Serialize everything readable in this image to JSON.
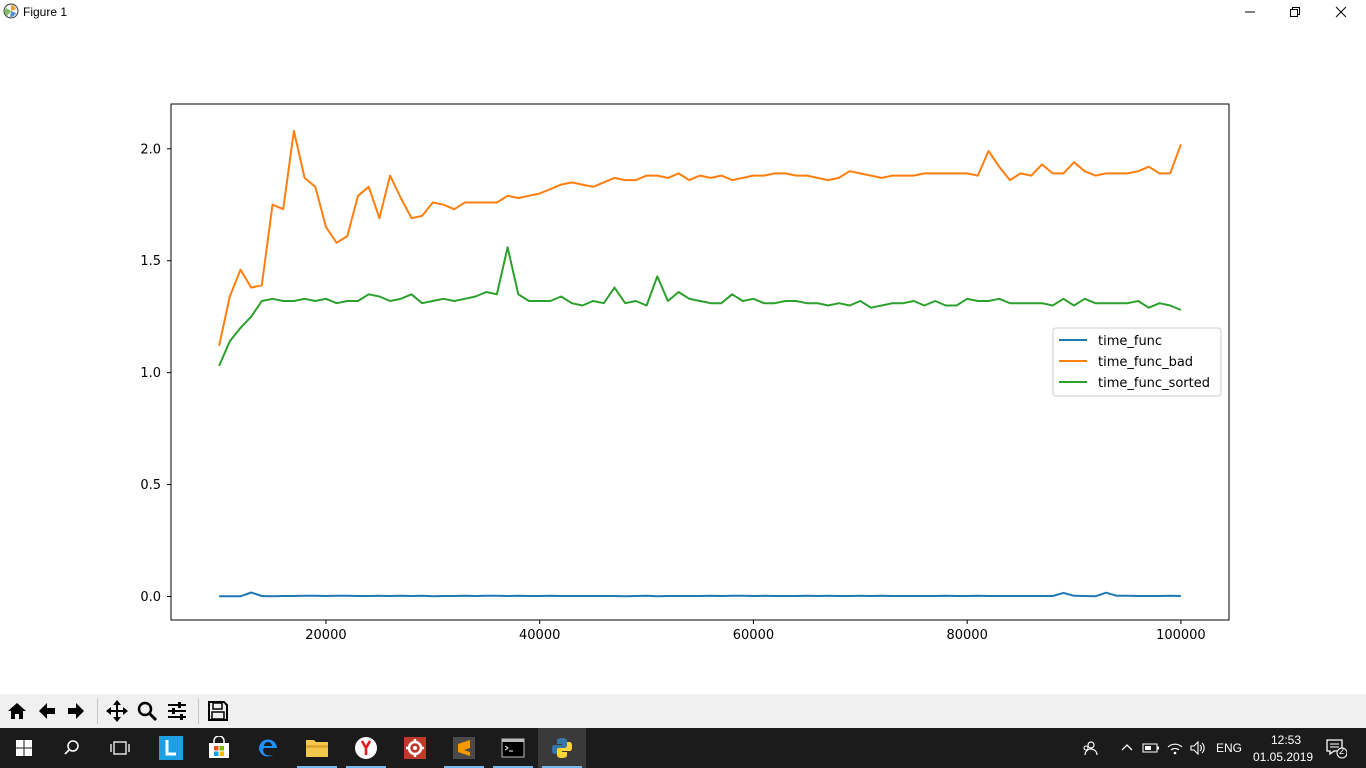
{
  "window": {
    "title": "Figure 1",
    "controls": [
      "minimize",
      "restore",
      "close"
    ]
  },
  "toolbar": {
    "buttons": [
      "home-icon",
      "back-arrow-icon",
      "forward-arrow-icon",
      "pan-icon",
      "zoom-icon",
      "configure-subplots-icon",
      "save-icon"
    ]
  },
  "taskbar": {
    "apps": [
      "start-icon",
      "search-icon",
      "task-view-icon",
      "L-app-icon",
      "store-icon",
      "edge-icon",
      "file-explorer-icon",
      "yandex-icon",
      "gear-app-icon",
      "sublime-text-icon",
      "terminal-icon",
      "python-icon"
    ],
    "tray": {
      "language": "ENG",
      "time": "12:53",
      "date": "01.05.2019",
      "notification_count": "2"
    }
  },
  "chart_data": {
    "type": "line",
    "title": "",
    "xlabel": "",
    "ylabel": "",
    "xlim": [
      5500,
      104500
    ],
    "ylim": [
      -0.105,
      2.2
    ],
    "xticks": [
      20000,
      40000,
      60000,
      80000,
      100000
    ],
    "yticks": [
      0.0,
      0.5,
      1.0,
      1.5,
      2.0
    ],
    "xtick_labels": [
      "20000",
      "40000",
      "60000",
      "80000",
      "100000"
    ],
    "ytick_labels": [
      "0.0",
      "0.5",
      "1.0",
      "1.5",
      "2.0"
    ],
    "grid": false,
    "legend_position": "center-right",
    "x": [
      10000,
      11000,
      12000,
      13000,
      14000,
      15000,
      16000,
      17000,
      18000,
      19000,
      20000,
      21000,
      22000,
      23000,
      24000,
      25000,
      26000,
      27000,
      28000,
      29000,
      30000,
      31000,
      32000,
      33000,
      34000,
      35000,
      36000,
      37000,
      38000,
      39000,
      40000,
      41000,
      42000,
      43000,
      44000,
      45000,
      46000,
      47000,
      48000,
      49000,
      50000,
      51000,
      52000,
      53000,
      54000,
      55000,
      56000,
      57000,
      58000,
      59000,
      60000,
      61000,
      62000,
      63000,
      64000,
      65000,
      66000,
      67000,
      68000,
      69000,
      70000,
      71000,
      72000,
      73000,
      74000,
      75000,
      76000,
      77000,
      78000,
      79000,
      80000,
      81000,
      82000,
      83000,
      84000,
      85000,
      86000,
      87000,
      88000,
      89000,
      90000,
      91000,
      92000,
      93000,
      94000,
      95000,
      96000,
      97000,
      98000,
      99000,
      100000
    ],
    "series": [
      {
        "name": "time_func",
        "color": "#1f77b4",
        "values": [
          0.001,
          0.001,
          0.001,
          0.018,
          0.002,
          0.001,
          0.002,
          0.002,
          0.003,
          0.003,
          0.002,
          0.003,
          0.003,
          0.002,
          0.002,
          0.003,
          0.002,
          0.003,
          0.002,
          0.003,
          0.001,
          0.002,
          0.002,
          0.003,
          0.002,
          0.003,
          0.003,
          0.002,
          0.003,
          0.002,
          0.002,
          0.003,
          0.002,
          0.002,
          0.002,
          0.002,
          0.002,
          0.002,
          0.001,
          0.002,
          0.003,
          0.001,
          0.002,
          0.002,
          0.002,
          0.002,
          0.003,
          0.002,
          0.003,
          0.003,
          0.002,
          0.003,
          0.002,
          0.002,
          0.002,
          0.003,
          0.002,
          0.003,
          0.002,
          0.002,
          0.003,
          0.002,
          0.003,
          0.002,
          0.002,
          0.002,
          0.002,
          0.002,
          0.003,
          0.002,
          0.002,
          0.003,
          0.002,
          0.002,
          0.002,
          0.002,
          0.002,
          0.002,
          0.002,
          0.016,
          0.003,
          0.002,
          0.001,
          0.017,
          0.003,
          0.003,
          0.002,
          0.002,
          0.002,
          0.003,
          0.002
        ]
      },
      {
        "name": "time_func_bad",
        "color": "#ff7f0e",
        "values": [
          1.12,
          1.34,
          1.46,
          1.38,
          1.39,
          1.75,
          1.73,
          2.08,
          1.87,
          1.83,
          1.65,
          1.58,
          1.61,
          1.79,
          1.83,
          1.69,
          1.88,
          1.78,
          1.69,
          1.7,
          1.76,
          1.75,
          1.73,
          1.76,
          1.76,
          1.76,
          1.76,
          1.79,
          1.78,
          1.79,
          1.8,
          1.82,
          1.84,
          1.85,
          1.84,
          1.83,
          1.85,
          1.87,
          1.86,
          1.86,
          1.88,
          1.88,
          1.87,
          1.89,
          1.86,
          1.88,
          1.87,
          1.88,
          1.86,
          1.87,
          1.88,
          1.88,
          1.89,
          1.89,
          1.88,
          1.88,
          1.87,
          1.86,
          1.87,
          1.9,
          1.89,
          1.88,
          1.87,
          1.88,
          1.88,
          1.88,
          1.89,
          1.89,
          1.89,
          1.89,
          1.89,
          1.88,
          1.99,
          1.92,
          1.86,
          1.89,
          1.88,
          1.93,
          1.89,
          1.89,
          1.94,
          1.9,
          1.88,
          1.89,
          1.89,
          1.89,
          1.9,
          1.92,
          1.89,
          1.89,
          2.02
        ]
      },
      {
        "name": "time_func_sorted",
        "color": "#2ca02c",
        "values": [
          1.03,
          1.14,
          1.2,
          1.25,
          1.32,
          1.33,
          1.32,
          1.32,
          1.33,
          1.32,
          1.33,
          1.31,
          1.32,
          1.32,
          1.35,
          1.34,
          1.32,
          1.33,
          1.35,
          1.31,
          1.32,
          1.33,
          1.32,
          1.33,
          1.34,
          1.36,
          1.35,
          1.56,
          1.35,
          1.32,
          1.32,
          1.32,
          1.34,
          1.31,
          1.3,
          1.32,
          1.31,
          1.38,
          1.31,
          1.32,
          1.3,
          1.43,
          1.32,
          1.36,
          1.33,
          1.32,
          1.31,
          1.31,
          1.35,
          1.32,
          1.33,
          1.31,
          1.31,
          1.32,
          1.32,
          1.31,
          1.31,
          1.3,
          1.31,
          1.3,
          1.32,
          1.29,
          1.3,
          1.31,
          1.31,
          1.32,
          1.3,
          1.32,
          1.3,
          1.3,
          1.33,
          1.32,
          1.32,
          1.33,
          1.31,
          1.31,
          1.31,
          1.31,
          1.3,
          1.33,
          1.3,
          1.33,
          1.31,
          1.31,
          1.31,
          1.31,
          1.32,
          1.29,
          1.31,
          1.3,
          1.28
        ]
      }
    ]
  }
}
